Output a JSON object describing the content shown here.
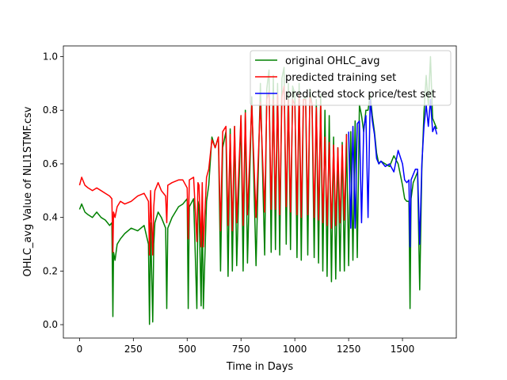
{
  "chart_data": {
    "type": "line",
    "title": "",
    "xlabel": "Time in Days",
    "ylabel": "OHLC_avg Value of NLI1STMF.csv",
    "xlim": [
      -75,
      1750
    ],
    "ylim": [
      -0.05,
      1.04
    ],
    "x_ticks": [
      0,
      250,
      500,
      750,
      1000,
      1250,
      1500
    ],
    "y_ticks": [
      0.0,
      0.2,
      0.4,
      0.6,
      0.8,
      1.0
    ],
    "x_tick_labels": [
      "0",
      "250",
      "500",
      "750",
      "1000",
      "1250",
      "1500"
    ],
    "y_tick_labels": [
      "0.0",
      "0.2",
      "0.4",
      "0.6",
      "0.8",
      "1.0"
    ],
    "grid": false,
    "legend_position": "upper-right",
    "series": [
      {
        "name": "original OHLC_avg",
        "color": "#008000",
        "x": [
          0,
          10,
          25,
          40,
          60,
          80,
          100,
          120,
          140,
          150,
          155,
          158,
          165,
          175,
          190,
          210,
          240,
          270,
          300,
          320,
          325,
          328,
          330,
          340,
          345,
          350,
          365,
          380,
          400,
          405,
          410,
          430,
          460,
          480,
          500,
          505,
          510,
          530,
          545,
          550,
          555,
          565,
          570,
          575,
          590,
          600,
          615,
          630,
          645,
          655,
          665,
          680,
          690,
          700,
          710,
          720,
          730,
          750,
          760,
          770,
          780,
          800,
          820,
          840,
          860,
          870,
          880,
          890,
          900,
          910,
          920,
          930,
          940,
          950,
          960,
          970,
          980,
          990,
          1000,
          1010,
          1020,
          1030,
          1040,
          1050,
          1060,
          1070,
          1080,
          1090,
          1100,
          1110,
          1120,
          1130,
          1140,
          1150,
          1160,
          1170,
          1180,
          1190,
          1200,
          1210,
          1220,
          1230,
          1240,
          1250,
          1260,
          1270,
          1280,
          1290,
          1300,
          1310,
          1320,
          1330,
          1340,
          1350,
          1360,
          1370,
          1380,
          1390,
          1400,
          1420,
          1440,
          1460,
          1480,
          1500,
          1510,
          1520,
          1530,
          1535,
          1540,
          1550,
          1560,
          1570,
          1580,
          1590,
          1600,
          1610,
          1620,
          1630,
          1640,
          1650,
          1660
        ],
        "values": [
          0.43,
          0.45,
          0.42,
          0.41,
          0.4,
          0.42,
          0.4,
          0.39,
          0.37,
          0.38,
          0.03,
          0.27,
          0.24,
          0.3,
          0.32,
          0.34,
          0.36,
          0.35,
          0.37,
          0.3,
          0.001,
          0.2,
          0.38,
          0.01,
          0.3,
          0.38,
          0.42,
          0.4,
          0.36,
          0.06,
          0.36,
          0.4,
          0.44,
          0.45,
          0.47,
          0.06,
          0.44,
          0.47,
          0.06,
          0.46,
          0.44,
          0.07,
          0.45,
          0.06,
          0.46,
          0.52,
          0.7,
          0.66,
          0.7,
          0.2,
          0.66,
          0.72,
          0.18,
          0.73,
          0.2,
          0.74,
          0.22,
          0.78,
          0.2,
          0.8,
          0.23,
          0.85,
          0.22,
          0.9,
          0.26,
          0.88,
          0.95,
          0.27,
          0.93,
          0.28,
          0.9,
          0.26,
          0.92,
          0.96,
          0.3,
          0.9,
          0.28,
          0.89,
          0.86,
          0.25,
          0.9,
          0.24,
          0.84,
          0.85,
          0.26,
          0.88,
          0.82,
          0.25,
          0.84,
          0.23,
          0.86,
          0.2,
          0.8,
          0.18,
          0.78,
          0.16,
          0.7,
          0.17,
          0.66,
          0.2,
          0.68,
          0.2,
          0.71,
          0.22,
          0.72,
          0.24,
          0.76,
          0.25,
          0.82,
          0.78,
          0.72,
          0.8,
          0.8,
          0.86,
          0.78,
          0.72,
          0.64,
          0.6,
          0.61,
          0.6,
          0.59,
          0.63,
          0.6,
          0.52,
          0.47,
          0.46,
          0.46,
          0.06,
          0.47,
          0.53,
          0.55,
          0.57,
          0.13,
          0.58,
          0.79,
          0.93,
          0.82,
          1.0,
          0.77,
          0.75,
          0.73
        ]
      },
      {
        "name": "predicted training set",
        "color": "#ff0000",
        "x": [
          0,
          10,
          25,
          40,
          60,
          80,
          100,
          120,
          140,
          150,
          155,
          158,
          165,
          175,
          190,
          210,
          240,
          270,
          300,
          320,
          325,
          328,
          330,
          340,
          345,
          350,
          365,
          380,
          400,
          405,
          410,
          430,
          460,
          480,
          500,
          505,
          510,
          530,
          545,
          550,
          555,
          565,
          570,
          575,
          590,
          600,
          615,
          630,
          645,
          655,
          665,
          680,
          690,
          700,
          710,
          720,
          730,
          750,
          760,
          770,
          780,
          800,
          820,
          840,
          860,
          870,
          880,
          890,
          900,
          910,
          920,
          930,
          940,
          950,
          960,
          970,
          980,
          990,
          1000,
          1010,
          1020,
          1030,
          1040,
          1050,
          1060,
          1070,
          1080,
          1090,
          1100,
          1110,
          1120,
          1130,
          1140,
          1150,
          1160,
          1170,
          1180,
          1190,
          1200,
          1210,
          1220,
          1230,
          1240
        ],
        "values": [
          0.52,
          0.55,
          0.52,
          0.51,
          0.5,
          0.51,
          0.5,
          0.49,
          0.48,
          0.47,
          0.27,
          0.42,
          0.4,
          0.44,
          0.46,
          0.45,
          0.46,
          0.48,
          0.49,
          0.46,
          0.26,
          0.38,
          0.5,
          0.26,
          0.44,
          0.5,
          0.53,
          0.5,
          0.48,
          0.38,
          0.52,
          0.53,
          0.54,
          0.54,
          0.51,
          0.32,
          0.54,
          0.55,
          0.31,
          0.53,
          0.52,
          0.29,
          0.53,
          0.29,
          0.55,
          0.58,
          0.69,
          0.66,
          0.7,
          0.35,
          0.72,
          0.74,
          0.37,
          0.71,
          0.35,
          0.74,
          0.38,
          0.78,
          0.37,
          0.79,
          0.41,
          0.82,
          0.4,
          0.83,
          0.42,
          0.84,
          0.87,
          0.43,
          0.84,
          0.43,
          0.86,
          0.41,
          0.85,
          0.89,
          0.44,
          0.84,
          0.42,
          0.84,
          0.82,
          0.41,
          0.86,
          0.4,
          0.84,
          0.84,
          0.41,
          0.85,
          0.82,
          0.4,
          0.81,
          0.39,
          0.82,
          0.38,
          0.7,
          0.37,
          0.68,
          0.36,
          0.67,
          0.37,
          0.66,
          0.38,
          0.67,
          0.39,
          0.71
        ]
      },
      {
        "name": "predicted stock price/test set",
        "color": "#0000ff",
        "x": [
          1250,
          1260,
          1270,
          1280,
          1290,
          1300,
          1310,
          1320,
          1330,
          1340,
          1350,
          1360,
          1370,
          1380,
          1390,
          1400,
          1420,
          1440,
          1460,
          1480,
          1500,
          1510,
          1520,
          1530,
          1535,
          1540,
          1550,
          1560,
          1570,
          1580,
          1590,
          1600,
          1610,
          1620,
          1630,
          1640,
          1650,
          1660
        ],
        "values": [
          0.72,
          0.36,
          0.74,
          0.36,
          0.75,
          0.76,
          0.38,
          0.73,
          0.78,
          0.4,
          0.84,
          0.76,
          0.71,
          0.62,
          0.6,
          0.61,
          0.59,
          0.6,
          0.57,
          0.65,
          0.6,
          0.54,
          0.53,
          0.54,
          0.29,
          0.54,
          0.56,
          0.58,
          0.58,
          0.3,
          0.6,
          0.74,
          0.82,
          0.74,
          0.84,
          0.72,
          0.74,
          0.71
        ]
      }
    ]
  }
}
